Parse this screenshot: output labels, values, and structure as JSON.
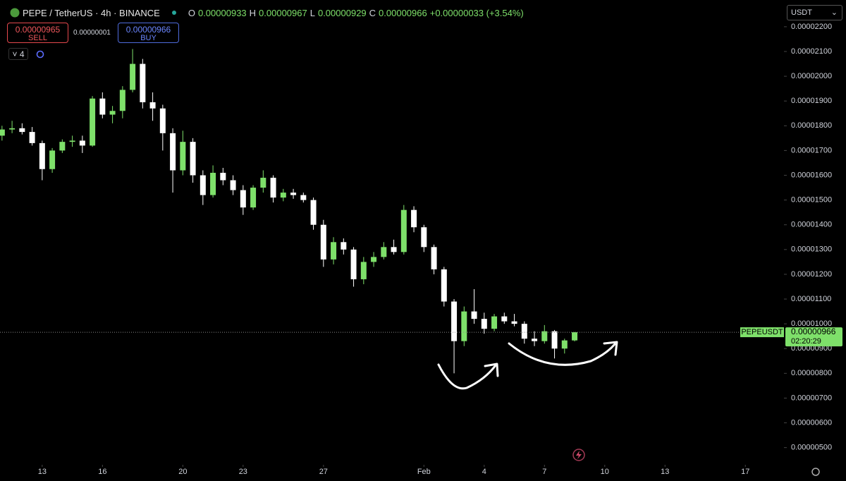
{
  "toolbar": {
    "symbol": "PEPE / TetherUS · 4h · BINANCE",
    "o_label": "O",
    "o": "0.00000933",
    "h_label": "H",
    "h": "0.00000967",
    "l_label": "L",
    "l": "0.00000929",
    "c_label": "C",
    "c": "0.00000966",
    "change": "+0.00000033 (+3.54%)",
    "sell_price": "0.00000965",
    "sell": "SELL",
    "spread": "0.00000001",
    "buy_price": "0.00000966",
    "buy": "BUY",
    "indicators": "4",
    "currency": "USDT"
  },
  "chart_data": {
    "type": "candlestick",
    "x": [
      11,
      11.5,
      12,
      12.5,
      13,
      13.5,
      14,
      14.5,
      15,
      15.5,
      16,
      16.5,
      17,
      17.5,
      18,
      18.5,
      19,
      19.5,
      20,
      20.5,
      21,
      21.5,
      22,
      22.5,
      23,
      23.5,
      24,
      24.5,
      25,
      25.5,
      26,
      26.5,
      27,
      27.5,
      28,
      28.5,
      29,
      29.5,
      30,
      30.5,
      31,
      31.5,
      32,
      32.5,
      33,
      33.5,
      34,
      34.5,
      35,
      35.5,
      36,
      36.5,
      37,
      37.5,
      38,
      38.5,
      39,
      39.5
    ],
    "open": [
      1.76e-05,
      1.785e-05,
      1.79e-05,
      1.775e-05,
      1.73e-05,
      1.625e-05,
      1.7e-05,
      1.735e-05,
      1.74e-05,
      1.72e-05,
      1.91e-05,
      1.845e-05,
      1.86e-05,
      1.945e-05,
      2.05e-05,
      1.895e-05,
      1.87e-05,
      1.77e-05,
      1.62e-05,
      1.735e-05,
      1.6e-05,
      1.52e-05,
      1.61e-05,
      1.58e-05,
      1.54e-05,
      1.47e-05,
      1.55e-05,
      1.59e-05,
      1.51e-05,
      1.53e-05,
      1.52e-05,
      1.5e-05,
      1.4e-05,
      1.26e-05,
      1.33e-05,
      1.3e-05,
      1.18e-05,
      1.25e-05,
      1.27e-05,
      1.31e-05,
      1.29e-05,
      1.46e-05,
      1.39e-05,
      1.31e-05,
      1.22e-05,
      1.09e-05,
      9.3e-06,
      1.05e-05,
      1.02e-05,
      9.8e-06,
      1.03e-05,
      1.01e-05,
      1e-05,
      9.4e-06,
      9.3e-06,
      9.7e-06,
      9e-06,
      9.33e-06
    ],
    "high": [
      1.8e-05,
      1.82e-05,
      1.81e-05,
      1.795e-05,
      1.74e-05,
      1.71e-05,
      1.745e-05,
      1.76e-05,
      1.76e-05,
      1.92e-05,
      1.935e-05,
      1.88e-05,
      1.96e-05,
      2.11e-05,
      2.07e-05,
      1.935e-05,
      1.885e-05,
      1.79e-05,
      1.78e-05,
      1.75e-05,
      1.62e-05,
      1.64e-05,
      1.63e-05,
      1.6e-05,
      1.56e-05,
      1.56e-05,
      1.62e-05,
      1.6e-05,
      1.545e-05,
      1.545e-05,
      1.53e-05,
      1.51e-05,
      1.42e-05,
      1.35e-05,
      1.345e-05,
      1.31e-05,
      1.27e-05,
      1.29e-05,
      1.33e-05,
      1.34e-05,
      1.48e-05,
      1.475e-05,
      1.4e-05,
      1.32e-05,
      1.23e-05,
      1.1e-05,
      1.07e-05,
      1.14e-05,
      1.045e-05,
      1.04e-05,
      1.045e-05,
      1.04e-05,
      1.01e-05,
      9.7e-06,
      9.95e-06,
      9.75e-06,
      9.4e-06,
      9.67e-06
    ],
    "low": [
      1.74e-05,
      1.77e-05,
      1.765e-05,
      1.72e-05,
      1.58e-05,
      1.61e-05,
      1.69e-05,
      1.715e-05,
      1.69e-05,
      1.715e-05,
      1.83e-05,
      1.81e-05,
      1.83e-05,
      1.935e-05,
      1.87e-05,
      1.82e-05,
      1.7e-05,
      1.53e-05,
      1.6e-05,
      1.57e-05,
      1.48e-05,
      1.51e-05,
      1.56e-05,
      1.52e-05,
      1.44e-05,
      1.46e-05,
      1.53e-05,
      1.49e-05,
      1.495e-05,
      1.505e-05,
      1.49e-05,
      1.38e-05,
      1.23e-05,
      1.24e-05,
      1.28e-05,
      1.15e-05,
      1.16e-05,
      1.23e-05,
      1.26e-05,
      1.28e-05,
      1.28e-05,
      1.37e-05,
      1.29e-05,
      1.2e-05,
      1.07e-05,
      8e-06,
      9.1e-06,
      1e-05,
      9.6e-06,
      9.7e-06,
      1e-05,
      9.9e-06,
      9.2e-06,
      9.1e-06,
      9.2e-06,
      8.6e-06,
      8.8e-06,
      9.29e-06
    ],
    "close": [
      1.785e-05,
      1.79e-05,
      1.775e-05,
      1.73e-05,
      1.625e-05,
      1.7e-05,
      1.735e-05,
      1.74e-05,
      1.72e-05,
      1.91e-05,
      1.845e-05,
      1.86e-05,
      1.945e-05,
      2.05e-05,
      1.895e-05,
      1.87e-05,
      1.77e-05,
      1.62e-05,
      1.735e-05,
      1.6e-05,
      1.52e-05,
      1.61e-05,
      1.58e-05,
      1.54e-05,
      1.47e-05,
      1.55e-05,
      1.59e-05,
      1.51e-05,
      1.53e-05,
      1.52e-05,
      1.5e-05,
      1.4e-05,
      1.26e-05,
      1.33e-05,
      1.3e-05,
      1.18e-05,
      1.25e-05,
      1.27e-05,
      1.31e-05,
      1.29e-05,
      1.46e-05,
      1.39e-05,
      1.31e-05,
      1.22e-05,
      1.09e-05,
      9.3e-06,
      1.05e-05,
      1.02e-05,
      9.8e-06,
      1.03e-05,
      1.01e-05,
      1e-05,
      9.4e-06,
      9.3e-06,
      9.7e-06,
      9e-06,
      9.33e-06,
      9.66e-06
    ],
    "up_color": "#7ee06a",
    "down_color": "#ffffff",
    "xlim": [
      10.9,
      49.85
    ],
    "xticks": [
      13,
      16,
      20,
      23,
      27,
      {
        "value": 32,
        "label": "Feb"
      },
      {
        "value": 35,
        "label": "4"
      },
      {
        "value": 38,
        "label": "7"
      },
      {
        "value": 41,
        "label": "10"
      },
      {
        "value": 44,
        "label": "13"
      },
      {
        "value": 48,
        "label": "17"
      }
    ],
    "ylim": [
      4.42e-06,
      2.308e-05
    ],
    "yticks": [
      {
        "value": 5e-06,
        "label": "0.00000500"
      },
      {
        "value": 6e-06,
        "label": "0.00000600"
      },
      {
        "value": 7e-06,
        "label": "0.00000700"
      },
      {
        "value": 8e-06,
        "label": "0.00000800"
      },
      {
        "value": 9e-06,
        "label": "0.00000900"
      },
      {
        "value": 1e-05,
        "label": "0.00001000"
      },
      {
        "value": 1.1e-05,
        "label": "0.00001100"
      },
      {
        "value": 1.2e-05,
        "label": "0.00001200"
      },
      {
        "value": 1.3e-05,
        "label": "0.00001300"
      },
      {
        "value": 1.4e-05,
        "label": "0.00001400"
      },
      {
        "value": 1.5e-05,
        "label": "0.00001500"
      },
      {
        "value": 1.6e-05,
        "label": "0.00001600"
      },
      {
        "value": 1.7e-05,
        "label": "0.00001700"
      },
      {
        "value": 1.8e-05,
        "label": "0.00001800"
      },
      {
        "value": 1.9e-05,
        "label": "0.00001900"
      },
      {
        "value": 2e-05,
        "label": "0.00002000"
      },
      {
        "value": 2.1e-05,
        "label": "0.00002100"
      },
      {
        "value": 2.2e-05,
        "label": "0.00002200"
      }
    ],
    "price_line": {
      "symbol": "PEPEUSDT",
      "price": {
        "value": 9.66e-06,
        "label": "0.00000966"
      },
      "countdown": "02:20:29",
      "color": "#7ee06a"
    }
  }
}
